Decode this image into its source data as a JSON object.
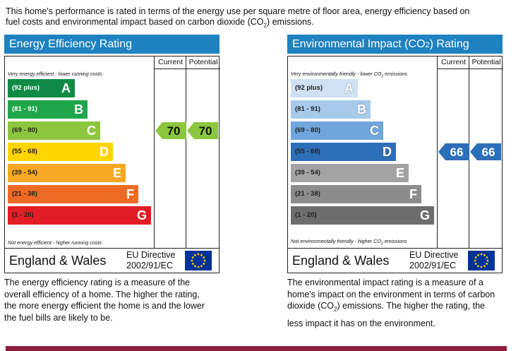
{
  "intro": {
    "line1": "This home's performance is rated in terms of the energy use per square metre of floor area, energy efficiency based on",
    "line2_pre": "fuel costs and environmental impact based on carbon dioxide (CO",
    "line2_sub": "2",
    "line2_post": ") emissions."
  },
  "colors": {
    "header_blue": "#1f82c0",
    "energy_bands": [
      "#0f8b45",
      "#1fa64a",
      "#8cc63f",
      "#ffd500",
      "#f7a823",
      "#ee6b25",
      "#e31d25"
    ],
    "env_bands": [
      "#cfe1f3",
      "#a7c9ea",
      "#6fa6dc",
      "#2d6eb8",
      "#a3a3a3",
      "#8c8c8c",
      "#6d6d6d"
    ],
    "energy_arrow": "#8cc63f",
    "env_arrow": "#2d6eb8",
    "footer_band": "#8c1c3c"
  },
  "column_current": "Current",
  "column_potential": "Potential",
  "country": "England & Wales",
  "directive_line1": "EU Directive",
  "directive_line2": "2002/91/EC",
  "flag_icon": "eu-flag-icon",
  "chart_data": [
    {
      "type": "bar",
      "title": "Energy Efficiency Rating",
      "top_note": "Very energy efficient - lower running costs",
      "bottom_note": "Not energy efficient - higher running costs",
      "categories": [
        "(92 plus)",
        "(81 - 91)",
        "(69 - 80)",
        "(55 - 68)",
        "(39 - 54)",
        "(21 - 38)",
        "(1 - 20)"
      ],
      "letters": [
        "A",
        "B",
        "C",
        "D",
        "E",
        "F",
        "G"
      ],
      "current": {
        "value": 70,
        "band": "C"
      },
      "potential": {
        "value": 70,
        "band": "C"
      },
      "description": [
        "The energy efficiency rating is a measure of the",
        "overall efficiency of a home. The higher the rating,",
        "the more energy efficient the home is and the lower",
        "the fuel bills are likely to be."
      ]
    },
    {
      "type": "bar",
      "title_pre": "Environmental Impact (CO",
      "title_sub": "2",
      "title_post": ") Rating",
      "top_note_pre": "Very environmentally friendly - lower CO",
      "top_note_sub": "2",
      "top_note_post": " emissions",
      "bottom_note_pre": "Not environmentally friendly - higher CO",
      "bottom_note_sub": "2",
      "bottom_note_post": " emissions",
      "categories": [
        "(92 plus)",
        "(81 - 91)",
        "(69 - 80)",
        "(55 - 68)",
        "(39 - 54)",
        "(21 - 38)",
        "(1 - 20)"
      ],
      "letters": [
        "A",
        "B",
        "C",
        "D",
        "E",
        "F",
        "G"
      ],
      "current": {
        "value": 66,
        "band": "D"
      },
      "potential": {
        "value": 66,
        "band": "D"
      },
      "description": [
        "The environmental impact rating is a measure of a",
        "home's impact on the environment in terms of carbon",
        "dioxide (CO",
        "2",
        ") emissions. The higher the rating, the",
        "less impact it has on the environment."
      ]
    }
  ]
}
